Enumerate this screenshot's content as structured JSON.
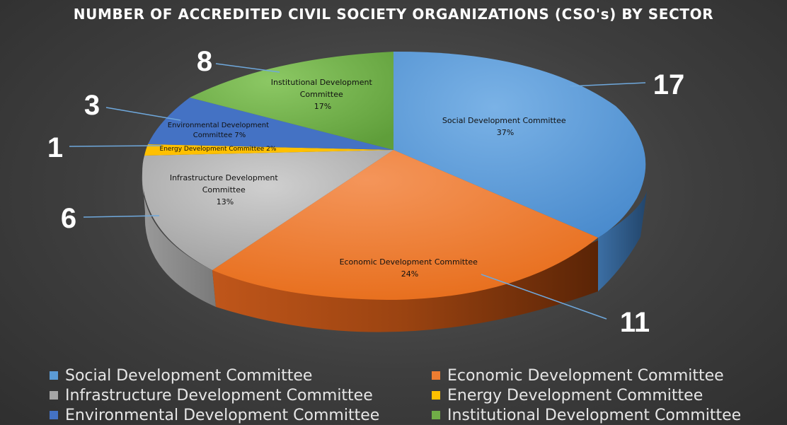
{
  "chart_data": {
    "type": "pie",
    "title": "NUMBER OF ACCREDITED CIVIL SOCIETY ORGANIZATIONS (CSO's) BY SECTOR",
    "series": [
      {
        "label": "Social Development Committee",
        "value": 17,
        "percent": "37%",
        "color": "#5b9bd5"
      },
      {
        "label": "Economic Development Committee",
        "value": 11,
        "percent": "24%",
        "color": "#ed7d31"
      },
      {
        "label": "Infrastructure Development Committee",
        "value": 6,
        "percent": "13%",
        "color": "#a5a5a5"
      },
      {
        "label": "Energy Development Committee",
        "value": 1,
        "percent": "2%",
        "color": "#ffc000"
      },
      {
        "label": "Environmental Development Committee",
        "value": 3,
        "percent": "7%",
        "color": "#4472c4"
      },
      {
        "label": "Institutional Development Committee",
        "value": 8,
        "percent": "17%",
        "color": "#70ad47"
      }
    ],
    "legend": [
      "Social Development Committee",
      "Economic Development Committee",
      "Infrastructure Development Committee",
      "Energy Development Committee",
      "Environmental Development Committee",
      "Institutional Development Committee"
    ],
    "data_labels": {
      "social": [
        "Social Development Committee",
        "37%"
      ],
      "economic": [
        "Economic Development Committee",
        "24%"
      ],
      "infrastructure": [
        "Infrastructure Development",
        "Committee",
        "13%"
      ],
      "energy": [
        "Energy Development Committee 2%"
      ],
      "environmental": [
        "Environmental Development",
        "Committee 7%"
      ],
      "institutional": [
        "Institutional Development",
        "Committee",
        "17%"
      ]
    },
    "callouts": {
      "social": "17",
      "economic": "11",
      "infrastructure": "6",
      "energy": "1",
      "environmental": "3",
      "institutional": "8"
    },
    "legend_placement": "bottom"
  }
}
